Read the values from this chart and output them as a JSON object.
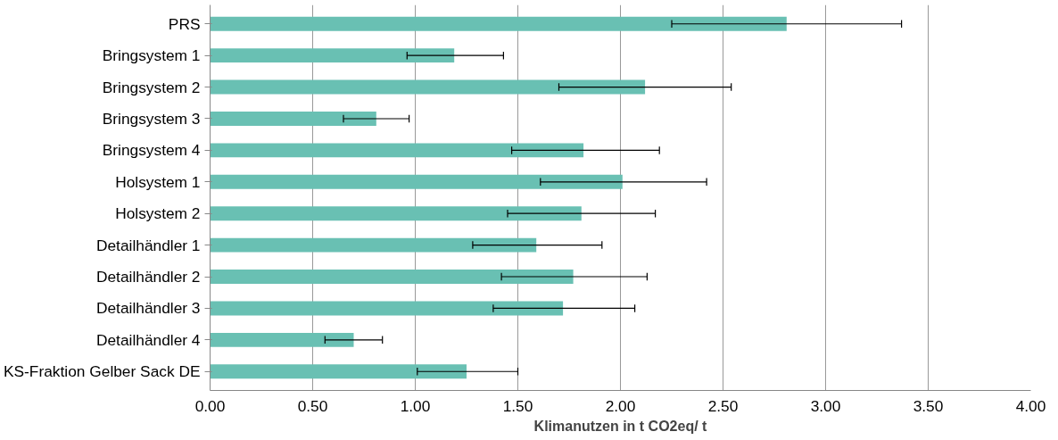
{
  "chart_data": {
    "type": "bar",
    "orientation": "horizontal",
    "categories": [
      "PRS",
      "Bringsystem 1",
      "Bringsystem 2",
      "Bringsystem 3",
      "Bringsystem 4",
      "Holsystem 1",
      "Holsystem 2",
      "Detailhändler 1",
      "Detailhändler 2",
      "Detailhändler 3",
      "Detailhändler 4",
      "KS-Fraktion Gelber Sack DE"
    ],
    "values": [
      2.81,
      1.19,
      2.12,
      0.81,
      1.82,
      2.01,
      1.81,
      1.59,
      1.77,
      1.72,
      0.7,
      1.25
    ],
    "errors": [
      [
        2.25,
        3.37
      ],
      [
        0.96,
        1.43
      ],
      [
        1.7,
        2.54
      ],
      [
        0.65,
        0.97
      ],
      [
        1.47,
        2.19
      ],
      [
        1.61,
        2.42
      ],
      [
        1.45,
        2.17
      ],
      [
        1.28,
        1.91
      ],
      [
        1.42,
        2.13
      ],
      [
        1.38,
        2.07
      ],
      [
        0.56,
        0.84
      ],
      [
        1.01,
        1.5
      ]
    ],
    "color": "#69c0b3",
    "xlabel": "Klimanutzen in t CO2eq/ t",
    "xlim": [
      0,
      4
    ],
    "xticks": [
      {
        "value": 0,
        "label": "0.00"
      },
      {
        "value": 0.5,
        "label": "0.50"
      },
      {
        "value": 1,
        "label": "1.00"
      },
      {
        "value": 1.5,
        "label": "1.50"
      },
      {
        "value": 2,
        "label": "2.00"
      },
      {
        "value": 2.5,
        "label": "2.50"
      },
      {
        "value": 3,
        "label": "3.00"
      },
      {
        "value": 3.5,
        "label": "3.50"
      },
      {
        "value": 4,
        "label": "4.00"
      }
    ],
    "grid": "x"
  }
}
